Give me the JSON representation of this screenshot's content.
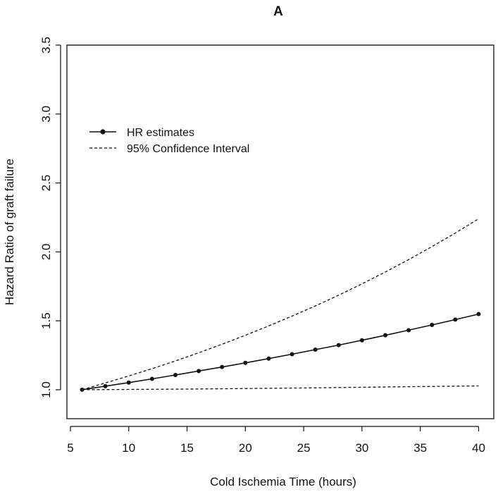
{
  "chart_data": {
    "type": "line",
    "title": "A",
    "xlabel": "Cold Ischemia Time (hours)",
    "ylabel": "Hazard Ratio of graft failure",
    "xlim": [
      4.7,
      41.3
    ],
    "ylim": [
      0.79,
      3.5
    ],
    "xticks": [
      5,
      10,
      15,
      20,
      25,
      30,
      35,
      40
    ],
    "yticks": [
      1.0,
      1.5,
      2.0,
      2.5,
      3.0,
      3.5
    ],
    "xtick_labels": [
      "5",
      "10",
      "15",
      "20",
      "25",
      "30",
      "35",
      "40"
    ],
    "ytick_labels": [
      "1.0",
      "1.5",
      "2.0",
      "2.5",
      "3.0",
      "3.5"
    ],
    "grid": false,
    "legend_position": "upper-left",
    "series": [
      {
        "name": "HR estimates",
        "style": "solid-with-points",
        "color": "#111111",
        "x": [
          6,
          8,
          10,
          12,
          14,
          16,
          18,
          20,
          22,
          24,
          26,
          28,
          30,
          32,
          34,
          36,
          38,
          40
        ],
        "y": [
          1.0,
          1.026,
          1.052,
          1.079,
          1.107,
          1.136,
          1.165,
          1.195,
          1.226,
          1.258,
          1.291,
          1.324,
          1.359,
          1.395,
          1.432,
          1.47,
          1.509,
          1.549
        ]
      },
      {
        "name": "95% Confidence Interval",
        "style": "dashed",
        "color": "#111111",
        "x": [
          6,
          8,
          10,
          12,
          14,
          16,
          18,
          20,
          22,
          24,
          26,
          28,
          30,
          32,
          34,
          36,
          38,
          40
        ],
        "y": [
          1.0,
          1.049,
          1.1,
          1.153,
          1.209,
          1.268,
          1.33,
          1.395,
          1.463,
          1.534,
          1.608,
          1.686,
          1.768,
          1.854,
          1.944,
          2.038,
          2.137,
          2.24
        ]
      },
      {
        "name": "",
        "style": "dashed",
        "color": "#111111",
        "x": [
          6,
          10,
          15,
          20,
          25,
          30,
          35,
          40
        ],
        "y": [
          1.0,
          1.002,
          1.005,
          1.009,
          1.013,
          1.018,
          1.023,
          1.028
        ]
      }
    ]
  }
}
